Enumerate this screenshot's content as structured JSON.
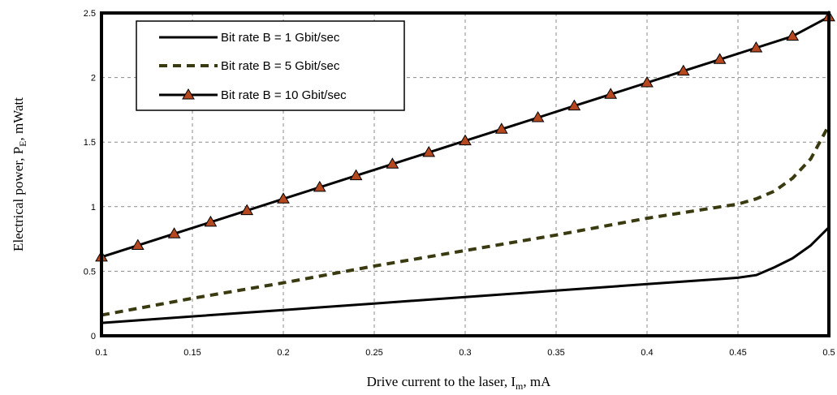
{
  "chart_data": {
    "type": "line",
    "xlabel": {
      "main": "Drive current to the laser, I",
      "sub": "m",
      "tail": ", mA"
    },
    "ylabel": {
      "main": "Electrical power, P",
      "sub": "E",
      "tail": ", mWatt"
    },
    "xlim": [
      0.1,
      0.5
    ],
    "ylim": [
      0,
      2.5
    ],
    "x_ticks": [
      "0.1",
      "0.15",
      "0.2",
      "0.25",
      "0.3",
      "0.35",
      "0.4",
      "0.45",
      "0.5"
    ],
    "y_ticks": [
      "0",
      "0.5",
      "1",
      "1.5",
      "2",
      "2.5"
    ],
    "grid": "dashed",
    "legend_position": "top-left",
    "series": [
      {
        "name": "Bit rate B = 1 Gbit/sec",
        "style": "solid",
        "marker": "none",
        "color": "#000000",
        "x": [
          0.1,
          0.15,
          0.2,
          0.25,
          0.3,
          0.35,
          0.4,
          0.44,
          0.45,
          0.46,
          0.47,
          0.48,
          0.49,
          0.5
        ],
        "y": [
          0.1,
          0.15,
          0.2,
          0.25,
          0.3,
          0.35,
          0.4,
          0.44,
          0.45,
          0.47,
          0.53,
          0.6,
          0.7,
          0.84
        ]
      },
      {
        "name": "Bit rate B = 5 Gbit/sec",
        "style": "dashed",
        "marker": "none",
        "color": "#3a3a10",
        "x": [
          0.1,
          0.15,
          0.2,
          0.25,
          0.3,
          0.35,
          0.4,
          0.45,
          0.46,
          0.47,
          0.48,
          0.49,
          0.5
        ],
        "y": [
          0.16,
          0.29,
          0.41,
          0.54,
          0.66,
          0.78,
          0.91,
          1.02,
          1.06,
          1.12,
          1.22,
          1.37,
          1.63
        ]
      },
      {
        "name": "Bit rate B = 10 Gbit/sec",
        "style": "solid",
        "marker": "triangle",
        "color": "#000000",
        "marker_color": "#b5481f",
        "x": [
          0.1,
          0.12,
          0.14,
          0.16,
          0.18,
          0.2,
          0.22,
          0.24,
          0.26,
          0.28,
          0.3,
          0.32,
          0.34,
          0.36,
          0.38,
          0.4,
          0.42,
          0.44,
          0.46,
          0.48,
          0.5
        ],
        "y": [
          0.61,
          0.7,
          0.79,
          0.88,
          0.97,
          1.06,
          1.15,
          1.24,
          1.33,
          1.42,
          1.51,
          1.6,
          1.69,
          1.78,
          1.87,
          1.96,
          2.05,
          2.14,
          2.23,
          2.32,
          2.47
        ]
      }
    ]
  }
}
